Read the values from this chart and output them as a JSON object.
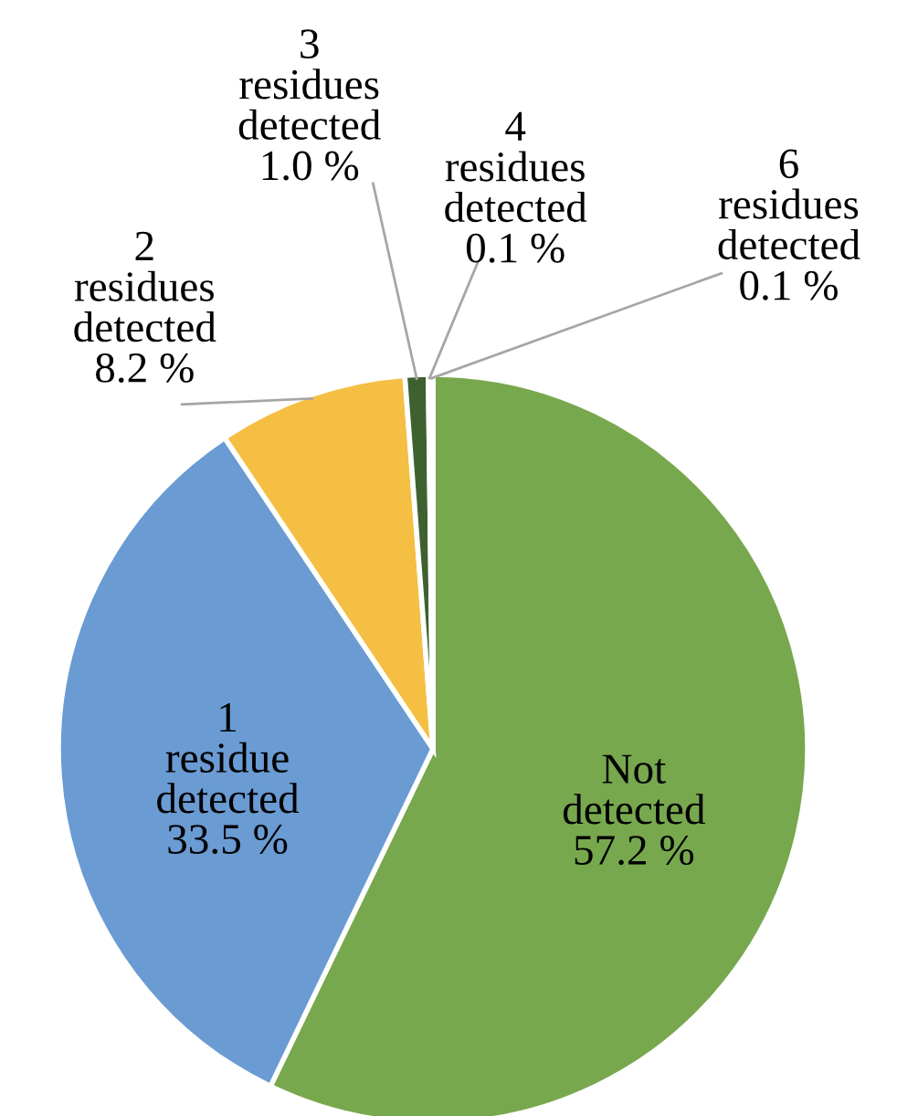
{
  "chart_data": {
    "type": "pie",
    "categories": [
      "Not detected",
      "1 residue detected",
      "2 residues detected",
      "3 residues detected",
      "4 residues detected",
      "6 residues detected"
    ],
    "values": [
      57.2,
      33.5,
      8.2,
      1.0,
      0.1,
      0.1
    ],
    "value_labels": [
      "57.2 %",
      "33.5 %",
      "8.2 %",
      "1.0 %",
      "0.1 %",
      "0.1 %"
    ],
    "colors": [
      "#78a84e",
      "#6a9bd3",
      "#f5bf43",
      "#3f6130",
      "#3f6130",
      "#3f6130"
    ]
  }
}
